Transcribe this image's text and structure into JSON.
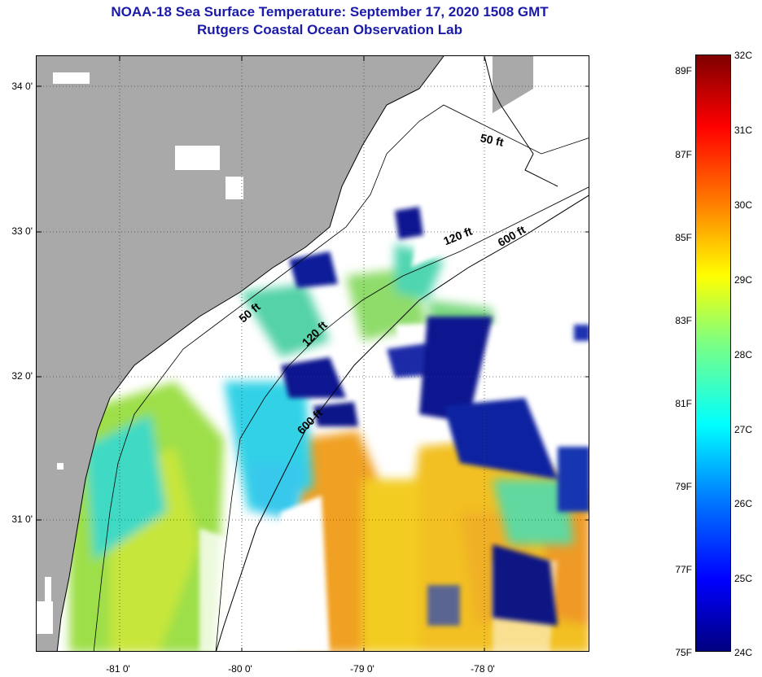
{
  "title": "NOAA-18 Sea Surface Temperature:  September 17, 2020 1508 GMT",
  "subtitle": "Rutgers Coastal Ocean Observation Lab",
  "map": {
    "lat_labels": [
      "34 0'",
      "33 0'",
      "32 0'",
      "31 0'"
    ],
    "lon_labels": [
      "-81 0'",
      "-80 0'",
      "-79 0'",
      "-78 0'"
    ],
    "depth_contours": [
      "50 ft",
      "120 ft",
      "600 ft",
      "50 ft",
      "120 ft",
      "600 ft"
    ],
    "colors": {
      "land": "#a9a9a9",
      "cloud": "#ffffff",
      "coast_line": "#000000",
      "grid": "#444444"
    }
  },
  "colorbar": {
    "fahrenheit_labels": [
      "89F",
      "87F",
      "85F",
      "83F",
      "81F",
      "79F",
      "77F",
      "75F"
    ],
    "celsius_labels": [
      "32C",
      "31C",
      "30C",
      "29C",
      "28C",
      "27C",
      "26C",
      "25C",
      "24C"
    ],
    "colormap": "jet"
  }
}
